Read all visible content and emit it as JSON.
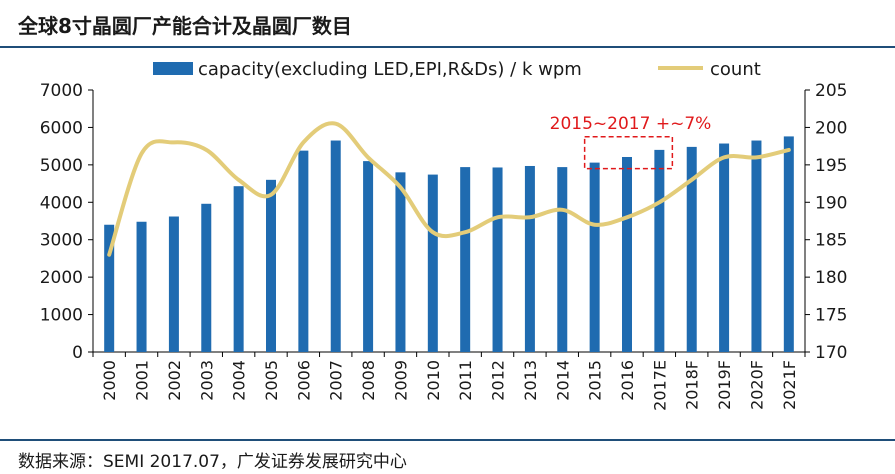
{
  "title": "全球8寸晶圆厂产能合计及晶圆厂数目",
  "source": "数据来源：SEMI 2017.07，广发证券发展研究中心",
  "colors": {
    "bar": "#1f6bb0",
    "line": "#e3cc79",
    "annotation": "#e0191b",
    "text": "#1a1a1a",
    "rule": "#1f4e79"
  },
  "chart_data": {
    "type": "bar",
    "categories": [
      "2000",
      "2001",
      "2002",
      "2003",
      "2004",
      "2005",
      "2006",
      "2007",
      "2008",
      "2009",
      "2010",
      "2011",
      "2012",
      "2013",
      "2014",
      "2015",
      "2016",
      "2017E",
      "2018F",
      "2019F",
      "2020F",
      "2021F"
    ],
    "series": [
      {
        "name": "capacity(excluding LED,EPI,R&Ds) / k wpm",
        "type": "bar",
        "axis": "left",
        "values": [
          3400,
          3480,
          3620,
          3960,
          4430,
          4600,
          5380,
          5650,
          5100,
          4800,
          4740,
          4940,
          4930,
          4970,
          4940,
          5060,
          5210,
          5400,
          5480,
          5570,
          5650,
          5760
        ]
      },
      {
        "name": "count",
        "type": "line",
        "axis": "right",
        "values": [
          183,
          196.5,
          198,
          197,
          193,
          191,
          198,
          200.5,
          196,
          192,
          186,
          186,
          188,
          188,
          189,
          187,
          188,
          190,
          193,
          196,
          196,
          197
        ]
      }
    ],
    "ylim_left": [
      0,
      7000
    ],
    "yticks_left": [
      0,
      1000,
      2000,
      3000,
      4000,
      5000,
      6000,
      7000
    ],
    "ylim_right": [
      170,
      205
    ],
    "yticks_right": [
      170,
      175,
      180,
      185,
      190,
      195,
      200,
      205
    ],
    "legend_position": "top",
    "annotation": {
      "text": "2015~2017 +~7%",
      "from": "2015",
      "to": "2017E"
    }
  }
}
